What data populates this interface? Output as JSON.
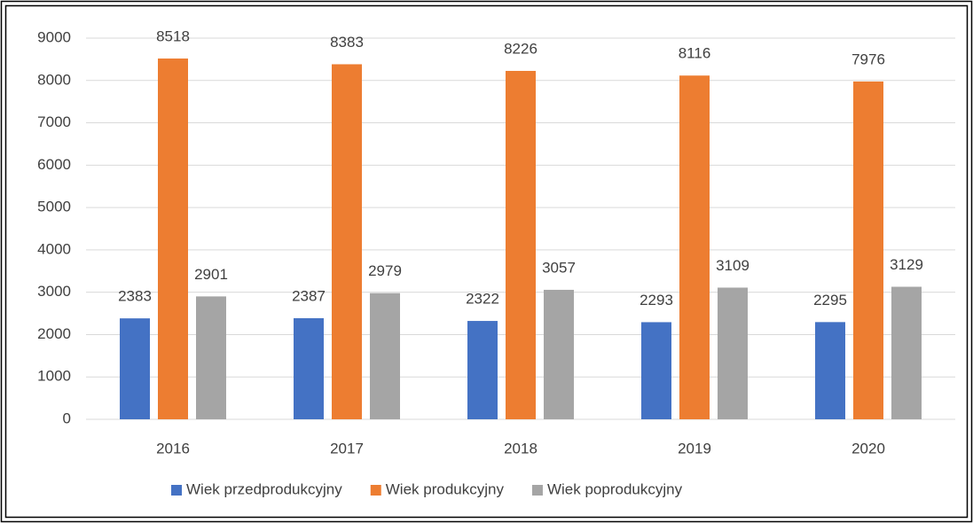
{
  "chart_data": {
    "type": "bar",
    "categories": [
      "2016",
      "2017",
      "2018",
      "2019",
      "2020"
    ],
    "series": [
      {
        "name": "Wiek przedprodukcyjny",
        "color": "#4472c4",
        "values": [
          2383,
          2387,
          2322,
          2293,
          2295
        ]
      },
      {
        "name": "Wiek produkcyjny",
        "color": "#ed7d31",
        "values": [
          8518,
          8383,
          8226,
          8116,
          7976
        ]
      },
      {
        "name": "Wiek poprodukcyjny",
        "color": "#a5a5a5",
        "values": [
          2901,
          2979,
          3057,
          3109,
          3129
        ]
      }
    ],
    "ylim": [
      0,
      9000
    ],
    "yticks": [
      0,
      1000,
      2000,
      3000,
      4000,
      5000,
      6000,
      7000,
      8000,
      9000
    ],
    "grid": true,
    "legend": "bottom"
  }
}
